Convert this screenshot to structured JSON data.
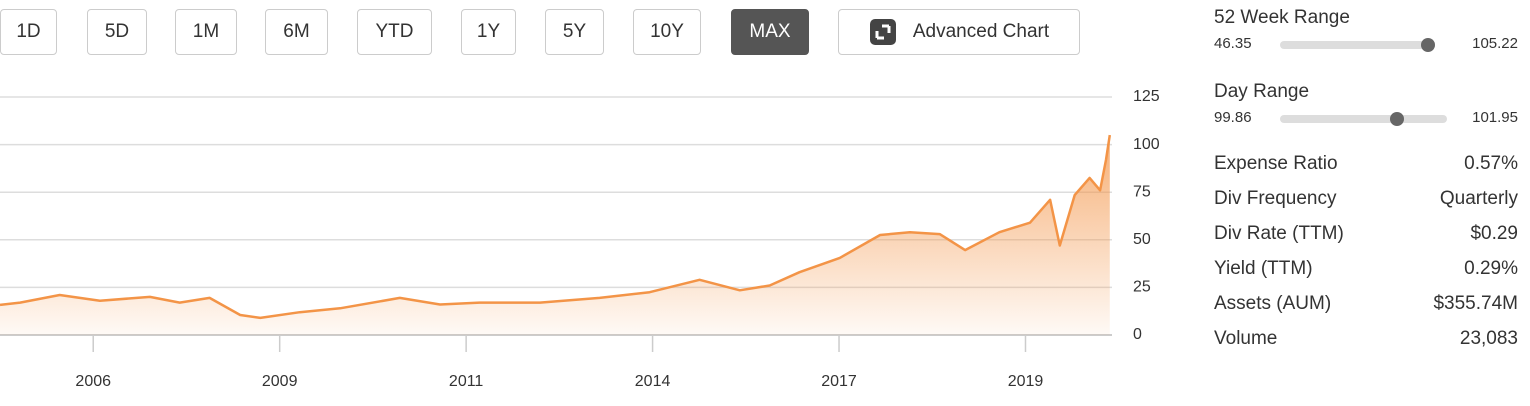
{
  "toolbar": {
    "ranges": [
      "1D",
      "5D",
      "1M",
      "6M",
      "YTD",
      "1Y",
      "5Y",
      "10Y",
      "MAX"
    ],
    "active_index": 8,
    "advanced_chart": "Advanced Chart"
  },
  "chart_data": {
    "type": "area",
    "color": "#f39447",
    "x": [
      2005.25,
      2005.52,
      2006.05,
      2006.59,
      2007.26,
      2007.66,
      2008.06,
      2008.47,
      2008.74,
      2009.27,
      2009.81,
      2010.61,
      2011.15,
      2011.68,
      2012.49,
      2013.29,
      2013.96,
      2014.63,
      2015.17,
      2015.57,
      2015.97,
      2016.51,
      2017.05,
      2017.45,
      2017.85,
      2018.19,
      2018.65,
      2019.06,
      2019.33,
      2019.46,
      2019.66,
      2019.86,
      2020.0,
      2020.08,
      2020.13
    ],
    "values": [
      15.8,
      17,
      21,
      18,
      20,
      17,
      19.5,
      10.5,
      9,
      12,
      14,
      19.5,
      16,
      17,
      17,
      19.5,
      22.5,
      29,
      23.5,
      26,
      33,
      40.5,
      52.5,
      54,
      53,
      44.6,
      54,
      59,
      71,
      47,
      73.5,
      82.5,
      76,
      92,
      105
    ],
    "xlim": [
      2005.25,
      2020.16
    ],
    "xticks": [
      {
        "value": 2006.5,
        "label": "2006"
      },
      {
        "value": 2009.0,
        "label": "2009"
      },
      {
        "value": 2011.5,
        "label": "2011"
      },
      {
        "value": 2014.0,
        "label": "2014"
      },
      {
        "value": 2016.5,
        "label": "2017"
      },
      {
        "value": 2019.0,
        "label": "2019"
      }
    ],
    "ylim": [
      0,
      125
    ],
    "yticks": [
      0,
      25,
      50,
      75,
      100,
      125
    ],
    "grid": true
  },
  "stats": {
    "week52": {
      "label": "52 Week Range",
      "low": 46.35,
      "high": 105.22
    },
    "day": {
      "label": "Day Range",
      "low": 99.86,
      "high": 101.95
    },
    "rows": [
      [
        "Expense Ratio",
        "0.57%"
      ],
      [
        "Div Frequency",
        "Quarterly"
      ],
      [
        "Div Rate (TTM)",
        "$0.29"
      ],
      [
        "Yield (TTM)",
        "0.29%"
      ],
      [
        "Assets (AUM)",
        "$355.74M"
      ],
      [
        "Volume",
        "23,083"
      ]
    ]
  }
}
